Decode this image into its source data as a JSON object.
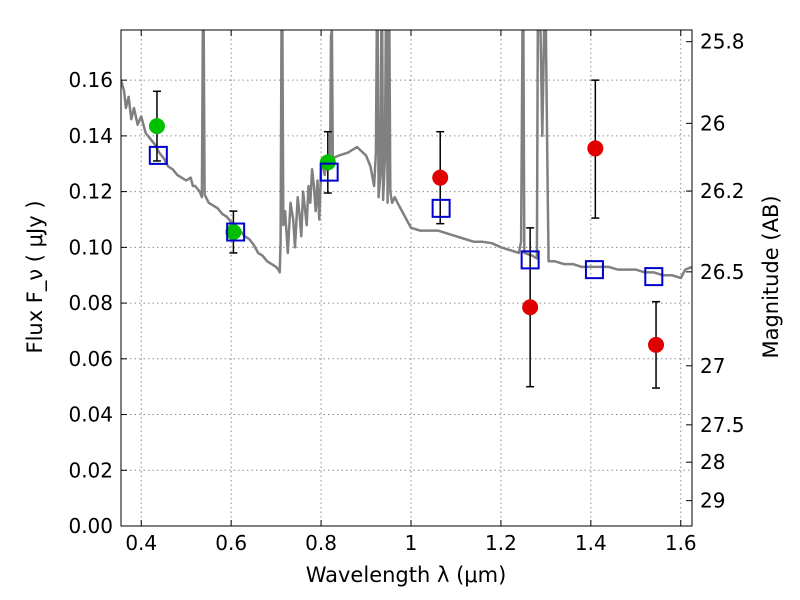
{
  "chart_data": {
    "type": "scatter",
    "xlabel": "Wavelength  λ (μm)",
    "ylabel": "Flux  F_ν  ( μJy )",
    "y2label": "Magnitude (AB)",
    "xlim": [
      0.355,
      1.625
    ],
    "ylim": [
      0.0,
      0.178
    ],
    "grid": true,
    "legend": "none",
    "x_ticks": [
      0.4,
      0.6,
      0.8,
      1.0,
      1.2,
      1.4,
      1.6
    ],
    "x_tick_labels": [
      "0.4",
      "0.6",
      "0.8",
      "1",
      "1.2",
      "1.4",
      "1.6"
    ],
    "y_ticks": [
      0.0,
      0.02,
      0.04,
      0.06,
      0.08,
      0.1,
      0.12,
      0.14,
      0.16
    ],
    "y_tick_labels": [
      "0.00",
      "0.02",
      "0.04",
      "0.06",
      "0.08",
      "0.10",
      "0.12",
      "0.14",
      "0.16"
    ],
    "y2_ticks": [
      {
        "mag": "25.8",
        "flux": 0.1738
      },
      {
        "mag": "26",
        "flux": 0.1445
      },
      {
        "mag": "26.2",
        "flux": 0.1202
      },
      {
        "mag": "26.5",
        "flux": 0.0912
      },
      {
        "mag": "27",
        "flux": 0.0575
      },
      {
        "mag": "27.5",
        "flux": 0.0363
      },
      {
        "mag": "28",
        "flux": 0.0229
      },
      {
        "mag": "29",
        "flux": 0.0091
      }
    ],
    "colors": {
      "spectrum": "#808080",
      "green": "#00c000",
      "red": "#e00000",
      "model": "#0000cc",
      "errorbar": "#000000",
      "grid": "#b0b0b0"
    },
    "series": [
      {
        "marker": "circle-green",
        "points": [
          {
            "x": 0.435,
            "y": 0.1435,
            "yerr": 0.0125
          },
          {
            "x": 0.605,
            "y": 0.1055,
            "yerr": 0.0075
          },
          {
            "x": 0.815,
            "y": 0.1305,
            "yerr": 0.011
          }
        ]
      },
      {
        "marker": "circle-red",
        "points": [
          {
            "x": 1.065,
            "y": 0.125,
            "ylo": 0.1085,
            "yhi": 0.1415
          },
          {
            "x": 1.265,
            "y": 0.0785,
            "ylo": 0.05,
            "yhi": 0.107
          },
          {
            "x": 1.41,
            "y": 0.1355,
            "ylo": 0.1105,
            "yhi": 0.16
          },
          {
            "x": 1.545,
            "y": 0.065,
            "ylo": 0.0495,
            "yhi": 0.0805
          }
        ]
      },
      {
        "marker": "square-blue",
        "points": [
          {
            "x": 0.438,
            "y": 0.133
          },
          {
            "x": 0.61,
            "y": 0.1055
          },
          {
            "x": 0.818,
            "y": 0.127
          },
          {
            "x": 1.067,
            "y": 0.114
          },
          {
            "x": 1.265,
            "y": 0.0955
          },
          {
            "x": 1.408,
            "y": 0.092
          },
          {
            "x": 1.54,
            "y": 0.0895
          }
        ]
      },
      {
        "marker": "line-spectrum",
        "points": [
          [
            0.355,
            0.16
          ],
          [
            0.362,
            0.156
          ],
          [
            0.366,
            0.15
          ],
          [
            0.372,
            0.154
          ],
          [
            0.378,
            0.146
          ],
          [
            0.384,
            0.15
          ],
          [
            0.392,
            0.144
          ],
          [
            0.4,
            0.147
          ],
          [
            0.41,
            0.141
          ],
          [
            0.42,
            0.139
          ],
          [
            0.43,
            0.137
          ],
          [
            0.44,
            0.134
          ],
          [
            0.45,
            0.132
          ],
          [
            0.46,
            0.129
          ],
          [
            0.47,
            0.128
          ],
          [
            0.48,
            0.126
          ],
          [
            0.49,
            0.125
          ],
          [
            0.5,
            0.124
          ],
          [
            0.51,
            0.125
          ],
          [
            0.515,
            0.122
          ],
          [
            0.52,
            0.122
          ],
          [
            0.53,
            0.12
          ],
          [
            0.535,
            0.118
          ],
          [
            0.537,
            0.178
          ],
          [
            0.539,
            0.178
          ],
          [
            0.541,
            0.119
          ],
          [
            0.55,
            0.116
          ],
          [
            0.56,
            0.115
          ],
          [
            0.57,
            0.114
          ],
          [
            0.58,
            0.112
          ],
          [
            0.59,
            0.111
          ],
          [
            0.6,
            0.109
          ],
          [
            0.61,
            0.107
          ],
          [
            0.62,
            0.106
          ],
          [
            0.63,
            0.104
          ],
          [
            0.64,
            0.103
          ],
          [
            0.65,
            0.101
          ],
          [
            0.66,
            0.098
          ],
          [
            0.67,
            0.097
          ],
          [
            0.68,
            0.095
          ],
          [
            0.69,
            0.094
          ],
          [
            0.7,
            0.093
          ],
          [
            0.705,
            0.092
          ],
          [
            0.708,
            0.091
          ],
          [
            0.71,
            0.102
          ],
          [
            0.712,
            0.178
          ],
          [
            0.714,
            0.178
          ],
          [
            0.716,
            0.108
          ],
          [
            0.72,
            0.113
          ],
          [
            0.726,
            0.098
          ],
          [
            0.732,
            0.116
          ],
          [
            0.738,
            0.11
          ],
          [
            0.742,
            0.1
          ],
          [
            0.748,
            0.118
          ],
          [
            0.752,
            0.112
          ],
          [
            0.756,
            0.104
          ],
          [
            0.76,
            0.12
          ],
          [
            0.764,
            0.114
          ],
          [
            0.768,
            0.108
          ],
          [
            0.772,
            0.122
          ],
          [
            0.776,
            0.116
          ],
          [
            0.78,
            0.128
          ],
          [
            0.784,
            0.122
          ],
          [
            0.788,
            0.113
          ],
          [
            0.792,
            0.124
          ],
          [
            0.796,
            0.11
          ],
          [
            0.8,
            0.128
          ],
          [
            0.804,
            0.13
          ],
          [
            0.808,
            0.126
          ],
          [
            0.812,
            0.132
          ],
          [
            0.816,
            0.128
          ],
          [
            0.82,
            0.13
          ],
          [
            0.822,
            0.176
          ],
          [
            0.824,
            0.178
          ],
          [
            0.826,
            0.132
          ],
          [
            0.84,
            0.133
          ],
          [
            0.86,
            0.134
          ],
          [
            0.88,
            0.136
          ],
          [
            0.9,
            0.133
          ],
          [
            0.91,
            0.129
          ],
          [
            0.918,
            0.122
          ],
          [
            0.922,
            0.134
          ],
          [
            0.924,
            0.178
          ],
          [
            0.926,
            0.178
          ],
          [
            0.928,
            0.118
          ],
          [
            0.932,
            0.126
          ],
          [
            0.934,
            0.178
          ],
          [
            0.936,
            0.178
          ],
          [
            0.938,
            0.117
          ],
          [
            0.942,
            0.132
          ],
          [
            0.944,
            0.178
          ],
          [
            0.946,
            0.178
          ],
          [
            0.948,
            0.116
          ],
          [
            0.95,
            0.178
          ],
          [
            0.952,
            0.178
          ],
          [
            0.954,
            0.12
          ],
          [
            0.958,
            0.116
          ],
          [
            0.964,
            0.118
          ],
          [
            0.97,
            0.116
          ],
          [
            0.98,
            0.113
          ],
          [
            0.99,
            0.11
          ],
          [
            1.0,
            0.107
          ],
          [
            1.02,
            0.106
          ],
          [
            1.04,
            0.106
          ],
          [
            1.06,
            0.106
          ],
          [
            1.08,
            0.105
          ],
          [
            1.1,
            0.104
          ],
          [
            1.12,
            0.103
          ],
          [
            1.14,
            0.102
          ],
          [
            1.16,
            0.102
          ],
          [
            1.18,
            0.1015
          ],
          [
            1.2,
            0.1
          ],
          [
            1.22,
            0.099
          ],
          [
            1.24,
            0.098
          ],
          [
            1.245,
            0.102
          ],
          [
            1.248,
            0.178
          ],
          [
            1.25,
            0.178
          ],
          [
            1.252,
            0.098
          ],
          [
            1.27,
            0.097
          ],
          [
            1.28,
            0.096
          ],
          [
            1.282,
            0.178
          ],
          [
            1.288,
            0.178
          ],
          [
            1.292,
            0.14
          ],
          [
            1.296,
            0.178
          ],
          [
            1.3,
            0.178
          ],
          [
            1.304,
            0.12
          ],
          [
            1.306,
            0.095
          ],
          [
            1.32,
            0.095
          ],
          [
            1.34,
            0.094
          ],
          [
            1.36,
            0.094
          ],
          [
            1.38,
            0.093
          ],
          [
            1.4,
            0.093
          ],
          [
            1.42,
            0.093
          ],
          [
            1.44,
            0.093
          ],
          [
            1.46,
            0.092
          ],
          [
            1.48,
            0.092
          ],
          [
            1.5,
            0.092
          ],
          [
            1.52,
            0.091
          ],
          [
            1.54,
            0.091
          ],
          [
            1.56,
            0.09
          ],
          [
            1.58,
            0.09
          ],
          [
            1.6,
            0.089
          ],
          [
            1.61,
            0.092
          ],
          [
            1.625,
            0.093
          ]
        ]
      }
    ]
  }
}
